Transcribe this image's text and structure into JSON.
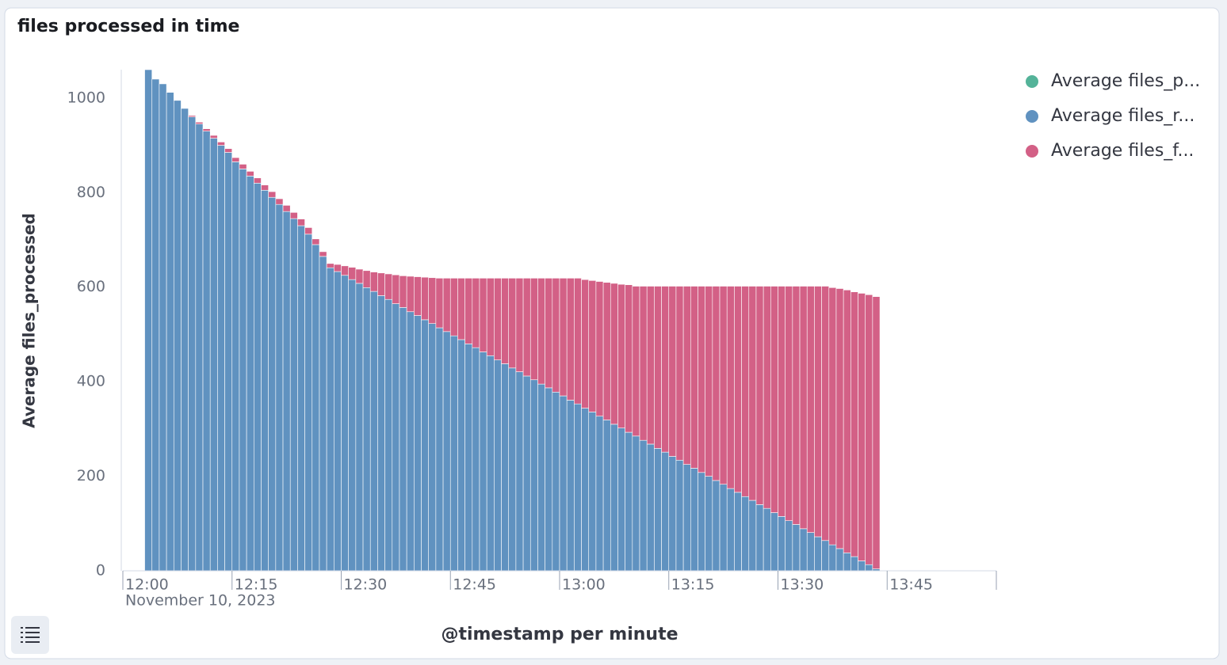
{
  "chart_data": {
    "type": "stacked-bar",
    "title": "files processed in time",
    "y_label": "Average files_processed",
    "x_label": "@timestamp per minute",
    "date_label": "November 10, 2023",
    "xlim": [
      "12:00",
      "14:00"
    ],
    "xticks": [
      "12:00",
      "12:15",
      "12:30",
      "12:45",
      "13:00",
      "13:15",
      "13:30",
      "13:45"
    ],
    "ylim": [
      0,
      1060
    ],
    "yticks": [
      0,
      200,
      400,
      600,
      800,
      1000
    ],
    "x": [
      "12:03",
      "12:04",
      "12:05",
      "12:06",
      "12:07",
      "12:08",
      "12:09",
      "12:10",
      "12:11",
      "12:12",
      "12:13",
      "12:14",
      "12:15",
      "12:16",
      "12:17",
      "12:18",
      "12:19",
      "12:20",
      "12:21",
      "12:22",
      "12:23",
      "12:24",
      "12:25",
      "12:26",
      "12:27",
      "12:28",
      "12:29",
      "12:30",
      "12:31",
      "12:32",
      "12:33",
      "12:34",
      "12:35",
      "12:36",
      "12:37",
      "12:38",
      "12:39",
      "12:40",
      "12:41",
      "12:42",
      "12:43",
      "12:44",
      "12:45",
      "12:46",
      "12:47",
      "12:48",
      "12:49",
      "12:50",
      "12:51",
      "12:52",
      "12:53",
      "12:54",
      "12:55",
      "12:56",
      "12:57",
      "12:58",
      "12:59",
      "13:00",
      "13:01",
      "13:02",
      "13:03",
      "13:04",
      "13:05",
      "13:06",
      "13:07",
      "13:08",
      "13:09",
      "13:10",
      "13:11",
      "13:12",
      "13:13",
      "13:14",
      "13:15",
      "13:16",
      "13:17",
      "13:18",
      "13:19",
      "13:20",
      "13:21",
      "13:22",
      "13:23",
      "13:24",
      "13:25",
      "13:26",
      "13:27",
      "13:28",
      "13:29",
      "13:30",
      "13:31",
      "13:32",
      "13:33",
      "13:34",
      "13:35",
      "13:36",
      "13:37",
      "13:38",
      "13:39",
      "13:40",
      "13:41",
      "13:42",
      "13:43"
    ],
    "series": [
      {
        "name": "Average files_p...",
        "color": "#54b399",
        "values": [
          0,
          0,
          0,
          0,
          0,
          0,
          0,
          0,
          0,
          0,
          0,
          0,
          0,
          0,
          0,
          0,
          0,
          0,
          0,
          0,
          0,
          0,
          0,
          0,
          0,
          0,
          0,
          0,
          0,
          0,
          0,
          0,
          0,
          0,
          0,
          0,
          0,
          0,
          0,
          0,
          0,
          0,
          0,
          0,
          0,
          0,
          0,
          0,
          0,
          0,
          0,
          0,
          0,
          0,
          0,
          0,
          0,
          0,
          0,
          0,
          0,
          0,
          0,
          0,
          0,
          0,
          0,
          0,
          0,
          0,
          0,
          0,
          0,
          0,
          0,
          0,
          0,
          0,
          0,
          0,
          0,
          0,
          0,
          0,
          0,
          0,
          0,
          0,
          0,
          0,
          0,
          0,
          0,
          0,
          0,
          0,
          0,
          0,
          0,
          0,
          0
        ]
      },
      {
        "name": "Average files_r...",
        "color": "#6092c0",
        "values": [
          1060,
          1040,
          1030,
          1012,
          995,
          978,
          960,
          945,
          930,
          915,
          900,
          885,
          865,
          850,
          835,
          820,
          805,
          790,
          775,
          760,
          745,
          730,
          712,
          690,
          665,
          641,
          633,
          625,
          616,
          608,
          599,
          591,
          582,
          574,
          565,
          557,
          548,
          540,
          531,
          523,
          514,
          506,
          497,
          489,
          480,
          472,
          463,
          455,
          446,
          438,
          429,
          421,
          412,
          404,
          395,
          387,
          378,
          370,
          361,
          353,
          344,
          336,
          327,
          319,
          310,
          302,
          293,
          285,
          276,
          268,
          259,
          251,
          242,
          234,
          225,
          217,
          208,
          200,
          191,
          183,
          174,
          166,
          157,
          149,
          140,
          132,
          123,
          115,
          106,
          98,
          89,
          81,
          72,
          64,
          55,
          47,
          38,
          30,
          21,
          13,
          4
        ]
      },
      {
        "name": "Average files_f...",
        "color": "#d36086",
        "values": [
          0,
          0,
          0,
          0,
          0,
          0,
          3,
          4,
          5,
          6,
          7,
          8,
          9,
          10,
          10,
          11,
          11,
          12,
          12,
          13,
          13,
          14,
          14,
          12,
          10,
          9,
          15,
          20,
          26,
          30,
          36,
          41,
          48,
          54,
          61,
          67,
          75,
          82,
          90,
          97,
          105,
          113,
          122,
          130,
          139,
          147,
          156,
          164,
          173,
          181,
          190,
          198,
          207,
          215,
          224,
          232,
          241,
          249,
          258,
          266,
          272,
          278,
          285,
          291,
          298,
          304,
          312,
          317,
          326,
          334,
          343,
          351,
          360,
          368,
          377,
          385,
          394,
          402,
          411,
          419,
          428,
          436,
          445,
          453,
          462,
          470,
          479,
          487,
          496,
          504,
          513,
          521,
          530,
          538,
          544,
          550,
          556,
          560,
          566,
          571,
          576
        ]
      }
    ]
  }
}
